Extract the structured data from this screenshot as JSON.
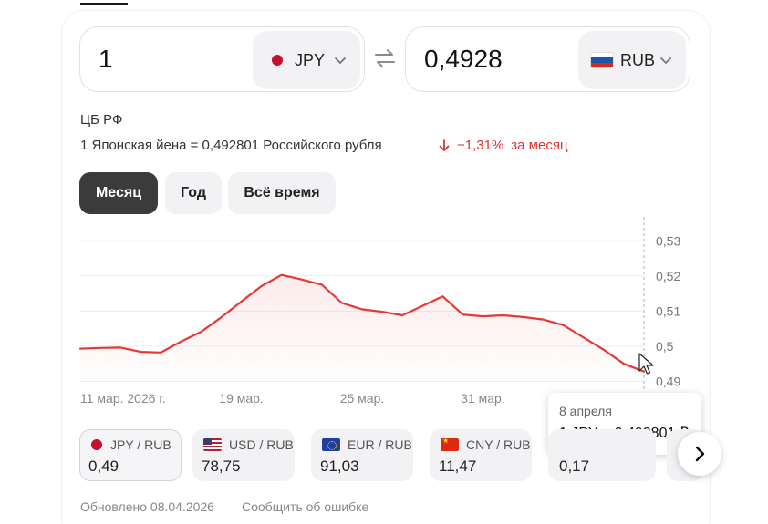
{
  "converter": {
    "from_value": "1",
    "from_currency": "JPY",
    "to_value": "0,4928",
    "to_currency": "RUB",
    "swap_icon": "swap-arrows-icon"
  },
  "rate_info": {
    "source": "ЦБ РФ",
    "rate_text": "1 Японская йена = 0,492801 Российского рубля",
    "change_text": "−1,31%",
    "change_period": "за месяц",
    "change_color": "#e03131"
  },
  "periods": {
    "month": "Месяц",
    "year": "Год",
    "all": "Всё время",
    "selected": "Месяц"
  },
  "chart_data": {
    "type": "line",
    "title": "",
    "xlabel": "",
    "ylabel": "",
    "x_tick_labels": [
      "11 мар. 2026 г.",
      "19 мар.",
      "25 мар.",
      "31 мар."
    ],
    "y_tick_labels": [
      "0,53",
      "0,52",
      "0,51",
      "0,5",
      "0,49"
    ],
    "y_ticks": [
      0.53,
      0.52,
      0.51,
      0.5,
      0.49
    ],
    "ylim": [
      0.4883,
      0.5337
    ],
    "grid": true,
    "color": "#e53935",
    "series": [
      {
        "x": [
          "2026-03-11",
          "2026-03-12",
          "2026-03-13",
          "2026-03-14",
          "2026-03-15",
          "2026-03-16",
          "2026-03-17",
          "2026-03-18",
          "2026-03-19",
          "2026-03-20",
          "2026-03-21",
          "2026-03-22",
          "2026-03-23",
          "2026-03-24",
          "2026-03-25",
          "2026-03-26",
          "2026-03-27",
          "2026-03-28",
          "2026-03-29",
          "2026-03-30",
          "2026-03-31",
          "2026-04-01",
          "2026-04-02",
          "2026-04-03",
          "2026-04-04",
          "2026-04-05",
          "2026-04-06",
          "2026-04-07",
          "2026-04-08"
        ],
        "y": [
          0.4993,
          0.4995,
          0.4996,
          0.4984,
          0.4982,
          0.5013,
          0.5041,
          0.5082,
          0.5127,
          0.5171,
          0.5203,
          0.519,
          0.5175,
          0.5123,
          0.5105,
          0.5098,
          0.5088,
          0.5115,
          0.5142,
          0.509,
          0.5085,
          0.5088,
          0.5083,
          0.5076,
          0.506,
          0.5025,
          0.499,
          0.495,
          0.4928
        ]
      }
    ]
  },
  "tooltip": {
    "date": "8 апреля",
    "rate": "1 JPY = 0,492801 ₽"
  },
  "pairs": [
    {
      "flag": "flag-jp-icon",
      "label": "JPY / RUB",
      "value": "0,49"
    },
    {
      "flag": "flag-us-icon",
      "label": "USD / RUB",
      "value": "78,75"
    },
    {
      "flag": "flag-eu-icon",
      "label": "EUR / RUB",
      "value": "91,03"
    },
    {
      "flag": "flag-cn-icon",
      "label": "CNY / RUB",
      "value": "11,47"
    },
    {
      "flag": "",
      "label": "",
      "value": "0,17"
    }
  ],
  "footer": {
    "updated": "Обновлено 08.04.2026",
    "report": "Сообщить об ошибке"
  }
}
